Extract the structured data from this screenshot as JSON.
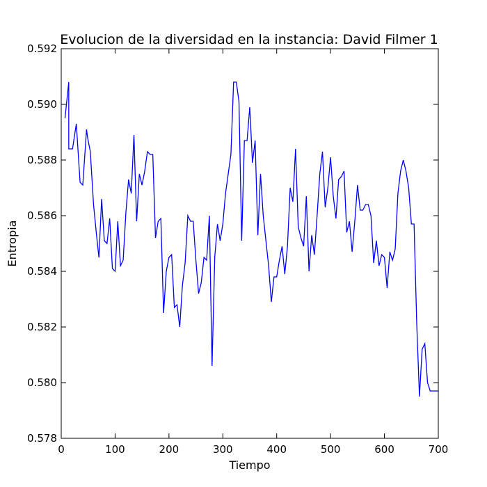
{
  "chart_data": {
    "type": "line",
    "title": "Evolucion de la diversidad en la instancia: David Filmer 1",
    "xlabel": "Tiempo",
    "ylabel": "Entropia",
    "xlim": [
      0,
      700
    ],
    "ylim": [
      0.578,
      0.592
    ],
    "grid": false,
    "legend": "none",
    "line_color": "#0000ff",
    "x_ticks": [
      {
        "value": 0,
        "label": "0"
      },
      {
        "value": 100,
        "label": "100"
      },
      {
        "value": 200,
        "label": "200"
      },
      {
        "value": 300,
        "label": "300"
      },
      {
        "value": 400,
        "label": "400"
      },
      {
        "value": 500,
        "label": "500"
      },
      {
        "value": 600,
        "label": "600"
      },
      {
        "value": 700,
        "label": "700"
      }
    ],
    "y_ticks": [
      {
        "value": 0.578,
        "label": "0.578"
      },
      {
        "value": 0.58,
        "label": "0.580"
      },
      {
        "value": 0.582,
        "label": "0.582"
      },
      {
        "value": 0.584,
        "label": "0.584"
      },
      {
        "value": 0.586,
        "label": "0.586"
      },
      {
        "value": 0.588,
        "label": "0.588"
      },
      {
        "value": 0.59,
        "label": "0.590"
      },
      {
        "value": 0.592,
        "label": "0.592"
      }
    ],
    "series": [
      {
        "x": [
          7,
          14,
          14,
          21,
          28,
          35,
          40,
          47,
          49,
          54,
          60,
          65,
          70,
          75,
          80,
          85,
          90,
          95,
          100,
          105,
          110,
          115,
          120,
          125,
          130,
          135,
          140,
          145,
          150,
          155,
          160,
          165,
          170,
          175,
          180,
          185,
          190,
          195,
          200,
          205,
          210,
          215,
          220,
          225,
          230,
          235,
          240,
          245,
          250,
          255,
          260,
          265,
          270,
          275,
          280,
          285,
          290,
          295,
          300,
          305,
          310,
          315,
          320,
          325,
          330,
          335,
          340,
          345,
          350,
          355,
          360,
          365,
          370,
          375,
          380,
          385,
          390,
          395,
          400,
          405,
          410,
          415,
          420,
          425,
          430,
          435,
          440,
          445,
          450,
          455,
          460,
          465,
          470,
          475,
          480,
          485,
          490,
          495,
          500,
          505,
          510,
          515,
          520,
          525,
          530,
          535,
          540,
          545,
          550,
          555,
          560,
          565,
          570,
          575,
          580,
          585,
          590,
          595,
          600,
          605,
          610,
          615,
          620,
          625,
          630,
          635,
          640,
          645,
          650,
          655,
          660,
          665,
          670,
          675,
          680,
          685,
          690,
          695,
          700
        ],
        "y": [
          0.5895,
          0.5908,
          0.5884,
          0.5884,
          0.5893,
          0.5872,
          0.5871,
          0.5891,
          0.5888,
          0.5883,
          0.5864,
          0.5854,
          0.5845,
          0.5866,
          0.5851,
          0.585,
          0.5859,
          0.5841,
          0.584,
          0.5858,
          0.5842,
          0.5844,
          0.5861,
          0.5873,
          0.5868,
          0.5889,
          0.5858,
          0.5875,
          0.5871,
          0.5876,
          0.5883,
          0.5882,
          0.5882,
          0.5852,
          0.5858,
          0.5859,
          0.5825,
          0.584,
          0.5845,
          0.5846,
          0.5827,
          0.5828,
          0.582,
          0.5835,
          0.5843,
          0.586,
          0.5858,
          0.5858,
          0.5844,
          0.5832,
          0.5836,
          0.5845,
          0.5844,
          0.586,
          0.5806,
          0.5845,
          0.5857,
          0.5851,
          0.5857,
          0.5868,
          0.5875,
          0.5882,
          0.5908,
          0.5908,
          0.5901,
          0.5851,
          0.5887,
          0.5887,
          0.5899,
          0.5879,
          0.5887,
          0.5853,
          0.5875,
          0.586,
          0.5851,
          0.5842,
          0.5829,
          0.5838,
          0.5838,
          0.5844,
          0.5849,
          0.5839,
          0.5849,
          0.587,
          0.5865,
          0.5884,
          0.5856,
          0.5852,
          0.5849,
          0.5867,
          0.584,
          0.5853,
          0.5846,
          0.586,
          0.5875,
          0.5883,
          0.5863,
          0.587,
          0.5881,
          0.5867,
          0.5859,
          0.5873,
          0.5874,
          0.5876,
          0.5854,
          0.5858,
          0.5847,
          0.5858,
          0.5871,
          0.5862,
          0.5862,
          0.5864,
          0.5864,
          0.586,
          0.5843,
          0.5851,
          0.5842,
          0.5846,
          0.5845,
          0.5834,
          0.5847,
          0.5844,
          0.5848,
          0.5868,
          0.5876,
          0.588,
          0.5876,
          0.587,
          0.5857,
          0.5857,
          0.5821,
          0.5795,
          0.5812,
          0.5814,
          0.58,
          0.5797,
          0.5797,
          0.5797,
          0.5797
        ]
      }
    ]
  }
}
